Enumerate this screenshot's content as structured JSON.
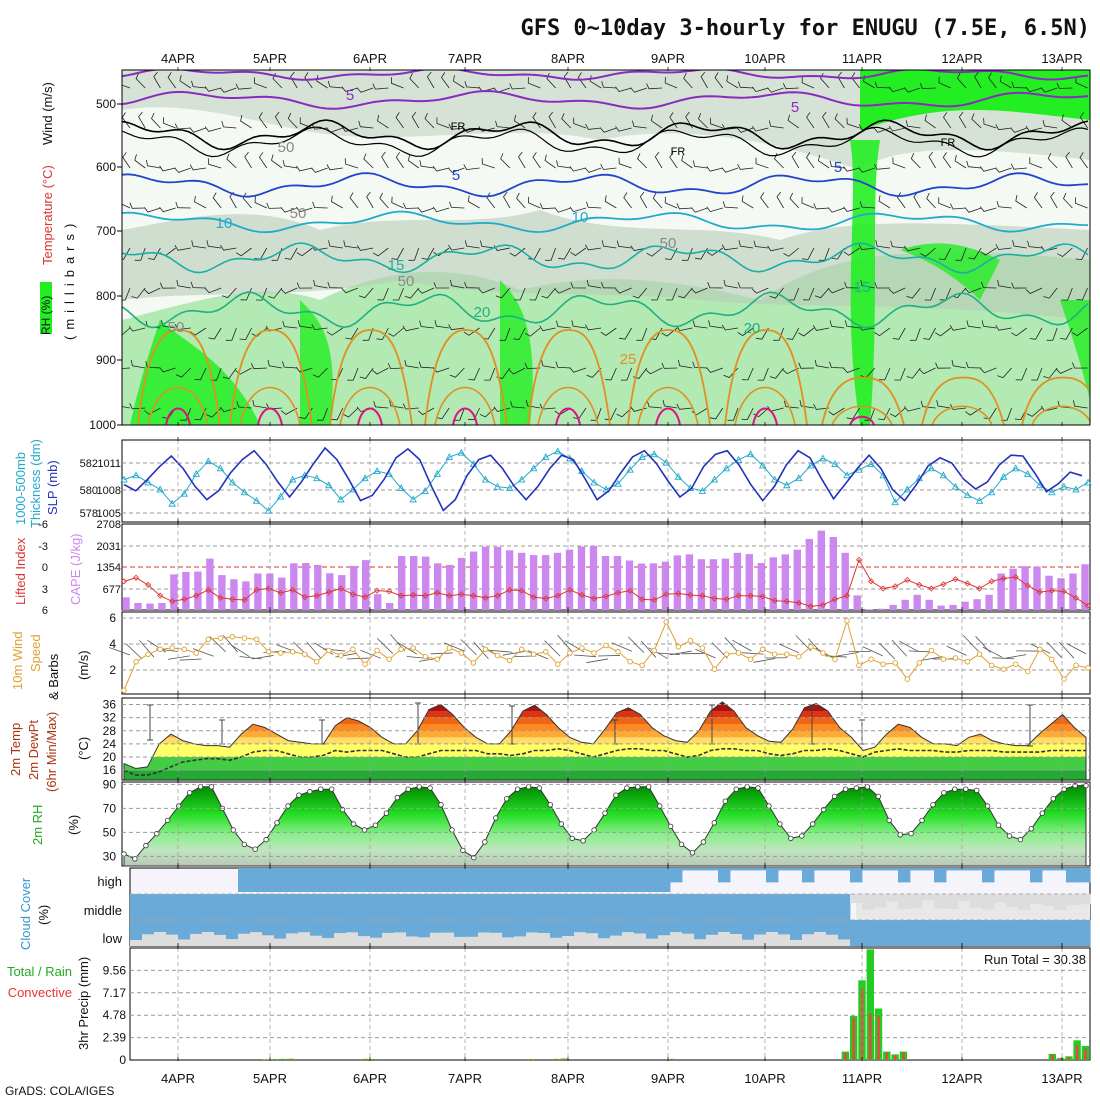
{
  "title": "GFS 0~10day 3-hourly for ENUGU (7.5E, 6.5N)",
  "footer": "GrADS: COLA/IGES",
  "dates": [
    "4APR",
    "5APR",
    "6APR",
    "7APR",
    "8APR",
    "9APR",
    "10APR",
    "11APR",
    "12APR",
    "13APR"
  ],
  "colors": {
    "rh_light": "#e6f2e6",
    "rh_mid": "#c8d8c8",
    "rh_green": "#7ddc7d",
    "rh_bright": "#22ee22",
    "purple": "#8a2bbf",
    "blue": "#2244cc",
    "cyan": "#22aacc",
    "teal": "#1ab0a0",
    "orange": "#e09020",
    "magenta": "#dd1188",
    "thickness": "#22aacc",
    "slp": "#2233bb",
    "lifted": "#dd3333",
    "cape": "#cc88ee",
    "wind": "#e0a030",
    "cloud": "#6aaad8",
    "cloud_gap": "#dddddd",
    "precip_total": "#22cc22",
    "precip_conv": "#ee4444"
  },
  "panels": {
    "upper": {
      "ylabel_wind": "Wind (m/s)",
      "ylabel_temp": "Temperature (°C)",
      "ylabel_rh": "RH (%)",
      "ylabel_p": "(millibars)",
      "pressure_ticks": [
        "500",
        "600",
        "700",
        "800",
        "900",
        "1000"
      ],
      "contour_labels": [
        "5",
        "5",
        "FR",
        "FR",
        "FR",
        "5",
        "5",
        "10",
        "10",
        "15",
        "15",
        "20",
        "20",
        "25",
        "50",
        "50",
        "50",
        "50",
        "50"
      ]
    },
    "slp": {
      "ylabel_a": "1000-500mb",
      "ylabel_b": "Thickness (dm)",
      "ylabel_c": "SLP (mb)",
      "left_ticks": [
        "582",
        "580",
        "578"
      ],
      "right_ticks": [
        "1011",
        "1008",
        "1005"
      ]
    },
    "cape": {
      "ylabel_a": "Lifted Index",
      "ylabel_b": "CAPE (J/kg)",
      "left_ticks": [
        "-6",
        "-3",
        "0",
        "3",
        "6"
      ],
      "right_ticks": [
        "2708",
        "2031",
        "1354",
        "677"
      ]
    },
    "wind": {
      "ylabel_a": "10m Wind",
      "ylabel_b": "Speed",
      "ylabel_c": "& Barbs",
      "ylabel_d": "(m/s)",
      "ticks": [
        "6",
        "4",
        "2"
      ]
    },
    "temp": {
      "ylabel_a": "2m Temp",
      "ylabel_b": "2m DewPt",
      "ylabel_c": "(6hr Min/Max)",
      "ylabel_d": "(°C)",
      "ticks": [
        "36",
        "32",
        "28",
        "24",
        "20",
        "16"
      ]
    },
    "rh": {
      "ylabel_a": "2m RH",
      "ylabel_b": "(%)",
      "ticks": [
        "90",
        "70",
        "50",
        "30"
      ]
    },
    "cloud": {
      "ylabel_a": "Cloud Cover",
      "ylabel_b": "(%)",
      "levels": [
        "high",
        "middle",
        "low"
      ]
    },
    "precip": {
      "ylabel_a": "Total / Rain",
      "ylabel_b": "Convective",
      "ylabel_c": "3hr Precip (mm)",
      "ticks": [
        "9.56",
        "7.17",
        "4.78",
        "2.39",
        "0"
      ],
      "run_total": "Run Total = 30.38"
    }
  },
  "chart_data": [
    {
      "type": "line",
      "name": "1000-500mb thickness and SLP",
      "x_unit": "3-hourly steps from 3APR 12Z",
      "series": [
        {
          "name": "SLP (mb)",
          "values": [
            1008.2,
            1007.5,
            1008.8,
            1010.2,
            1011.4,
            1010,
            1008,
            1006.5,
            1007.5,
            1009.5,
            1011,
            1012,
            1010.5,
            1008.5,
            1006.8,
            1008.5,
            1010.5,
            1012.3,
            1011,
            1008.8,
            1006.4,
            1007,
            1008.8,
            1011.2,
            1012.2,
            1011,
            1008,
            1005.3,
            1006.5,
            1009.2,
            1011,
            1011.5,
            1010,
            1008,
            1006.5,
            1008,
            1010,
            1011.5,
            1011,
            1008.8,
            1006.5,
            1007.5,
            1009.5,
            1011.3,
            1012,
            1010.6,
            1008.6,
            1006.8,
            1007.8,
            1010.2,
            1011.6,
            1012,
            1010.4,
            1008.2,
            1006.4,
            1008,
            1010.4,
            1012,
            1011.2,
            1008.8,
            1006.6,
            1008.3,
            1010,
            1011.5,
            1010,
            1007.6,
            1006.4,
            1008.2,
            1010.3,
            1011.2,
            1010.6,
            1008.8,
            1007.7,
            1008.5,
            1010.4,
            1011.5,
            1011.4,
            1009.5,
            1007.4,
            1008.3,
            1009.6,
            1009.2
          ]
        },
        {
          "name": "Thickness (dm)",
          "values": [
            580.2,
            580.5,
            580,
            579.5,
            578.5,
            579.2,
            580.6,
            581.5,
            581,
            580,
            579.3,
            578.7,
            578,
            579,
            580.2,
            580.5,
            580.3,
            579.8,
            578.8,
            579.5,
            580.3,
            580.8,
            580.6,
            579.6,
            578.8,
            579.4,
            580.6,
            581.8,
            582.1,
            581.3,
            580.2,
            579.7,
            579.6,
            580.2,
            581,
            581.8,
            582.2,
            581.7,
            580.8,
            580,
            579.5,
            579.9,
            580.9,
            581.8,
            582,
            581.4,
            580.4,
            579.6,
            579.4,
            580.2,
            581,
            581.6,
            582,
            581.2,
            580.2,
            579.8,
            580.3,
            581.2,
            581.7,
            581.3,
            580.5,
            580.9,
            581.3,
            580.5,
            578.6,
            579.5,
            580.3,
            581,
            580.5,
            579.7,
            579.1,
            578.7,
            579.3,
            580.4,
            581,
            580.6,
            579.8,
            579.3,
            579.7,
            579.5,
            580
          ]
        }
      ]
    },
    {
      "type": "bar",
      "name": "CAPE and Lifted Index",
      "series": [
        {
          "name": "CAPE (J/kg)",
          "values": [
            400,
            220,
            200,
            220,
            1120,
            1200,
            1210,
            1620,
            1100,
            970,
            900,
            1150,
            1150,
            1020,
            1470,
            1480,
            1420,
            1160,
            1100,
            1390,
            1570,
            500,
            220,
            1700,
            1700,
            1680,
            1470,
            1420,
            1640,
            1840,
            1990,
            1990,
            1880,
            1800,
            1730,
            1730,
            1800,
            1900,
            2000,
            2020,
            1700,
            1700,
            1560,
            1460,
            1470,
            1520,
            1720,
            1750,
            1600,
            1600,
            1620,
            1800,
            1760,
            1480,
            1660,
            1750,
            1900,
            2240,
            2500,
            2300,
            1800,
            460,
            20,
            40,
            160,
            320,
            480,
            320,
            140,
            160,
            260,
            340,
            480,
            1150,
            1300,
            1380,
            1360,
            1080,
            1000,
            1150,
            1440
          ]
        },
        {
          "name": "Lifted Index",
          "values": [
            -2,
            -1.5,
            -2.5,
            -4,
            -4.8,
            -4.5,
            -4,
            -3.2,
            -4.3,
            -4.5,
            -4.6,
            -3.2,
            -3,
            -3.6,
            -3.2,
            -4.2,
            -4,
            -3.5,
            -3,
            -3.8,
            -4.2,
            -3.3,
            -3.4,
            -4,
            -3.9,
            -4,
            -3.6,
            -4,
            -3.8,
            -4,
            -4.3,
            -4,
            -3.2,
            -3.3,
            -4.2,
            -4.4,
            -4,
            -3.2,
            -3.9,
            -4.4,
            -4.1,
            -3.6,
            -3.3,
            -4.5,
            -4.6,
            -3.8,
            -3.7,
            -3.9,
            -4,
            -4.4,
            -4.5,
            -4,
            -4,
            -4.1,
            -4.7,
            -4.8,
            -5,
            -5.5,
            -5.3,
            -4.5,
            -4,
            1,
            -2,
            -3,
            -2.7,
            -1.8,
            -2.5,
            -3,
            -2.4,
            -1.7,
            -2.3,
            -3,
            -2,
            -1.6,
            -1.4,
            -2.6,
            -3.5,
            -3.3,
            -3.4,
            -4.3,
            -5.4
          ]
        }
      ]
    },
    {
      "type": "line",
      "name": "10m Wind Speed",
      "series": [
        {
          "name": "Wind speed (m/s)",
          "values": [
            0.5,
            2.8,
            3.4,
            3.8,
            3.9,
            3.8,
            3.5,
            4.6,
            4.7,
            4.8,
            4.7,
            4.6,
            3.6,
            3.5,
            3.6,
            3.4,
            2.8,
            3.7,
            3.3,
            3.8,
            2.6,
            3.7,
            3.0,
            3.8,
            3.9,
            3.2,
            3.0,
            3.9,
            3.5,
            2.7,
            3.8,
            3.3,
            2.9,
            3.8,
            3.4,
            3.6,
            2.6,
            3.5,
            3.9,
            3.5,
            4.1,
            3.6,
            2.8,
            2.5,
            3.7,
            6.0,
            4.0,
            4.5,
            3.9,
            2.2,
            3.4,
            3.5,
            3.0,
            3.8,
            3.4,
            3.4,
            3.2,
            4.0,
            3.5,
            3.0,
            6.1,
            2.5,
            3.0,
            2.6,
            2.7,
            1.4,
            2.7,
            3.7,
            3.0,
            3.1,
            2.8,
            3.4,
            2.5,
            2.2,
            2.6,
            2.0,
            3.8,
            3.0,
            1.4,
            2.5,
            2.3
          ]
        }
      ]
    },
    {
      "type": "area",
      "name": "2m Temperature and Dew Point",
      "series": [
        {
          "name": "2m Temp (°C)",
          "values": [
            18,
            16.5,
            17,
            24,
            27,
            25,
            24,
            23.5,
            23.5,
            23,
            27,
            30,
            29,
            27,
            25,
            24.5,
            24,
            24,
            29.5,
            32,
            31,
            29,
            26,
            24,
            24,
            28,
            34.5,
            36,
            33,
            29,
            26,
            24,
            24,
            28,
            34,
            35.8,
            33,
            29,
            26,
            24.5,
            24,
            28.5,
            33.5,
            35,
            33,
            29,
            26.5,
            25,
            24.5,
            28,
            34,
            36.8,
            34,
            29,
            26.5,
            24.8,
            24.5,
            28.5,
            35,
            36.3,
            34,
            29,
            26,
            22,
            23,
            27,
            30,
            29,
            26,
            24,
            24,
            23.5,
            26,
            27,
            25,
            24,
            23.5,
            23.5,
            27,
            30,
            33,
            29,
            26
          ]
        },
        {
          "name": "2m DewPt (°C)",
          "values": [
            16,
            14.5,
            14.5,
            15.5,
            17,
            18.5,
            19,
            19.5,
            19.5,
            19,
            20,
            21.5,
            22,
            22,
            21,
            20,
            20,
            20.5,
            22,
            21.5,
            22,
            22,
            22,
            21,
            20,
            20,
            21,
            22,
            22,
            22,
            22,
            21,
            21,
            20.5,
            21,
            22,
            22,
            22.5,
            22,
            21,
            20,
            21,
            22,
            22.5,
            22.5,
            22,
            22,
            21,
            20,
            20.5,
            22,
            22.5,
            22.5,
            22,
            22,
            21,
            20.5,
            21,
            22,
            22,
            22.5,
            22,
            21,
            20,
            21.5,
            22,
            22.5,
            22,
            22,
            22,
            21.5,
            21.5,
            22,
            22,
            22,
            21.5,
            21.5,
            21.5,
            21.5,
            22,
            22,
            22,
            22
          ]
        }
      ]
    },
    {
      "type": "area",
      "name": "2m Relative Humidity",
      "series": [
        {
          "name": "2m RH (%)",
          "values": [
            32,
            28,
            39,
            49,
            60,
            72,
            83,
            88,
            88,
            70,
            52,
            40,
            36,
            44,
            58,
            72,
            81,
            84,
            86,
            86,
            69,
            57,
            52,
            56,
            66,
            79,
            86,
            88,
            87,
            73,
            52,
            35,
            29,
            42,
            62,
            78,
            86,
            88,
            87,
            73,
            57,
            45,
            43,
            52,
            66,
            81,
            87,
            88,
            88,
            72,
            55,
            40,
            33,
            42,
            58,
            76,
            86,
            88,
            87,
            72,
            57,
            45,
            47,
            57,
            69,
            80,
            86,
            87,
            88,
            80,
            60,
            48,
            49,
            60,
            73,
            83,
            86,
            86,
            85,
            72,
            56,
            47,
            44,
            53,
            66,
            78,
            86,
            89,
            89
          ]
        }
      ]
    },
    {
      "type": "bar",
      "name": "3hr Precip",
      "ylim": [
        0,
        11.95
      ],
      "series": [
        {
          "name": "Total (mm)",
          "values": [
            0,
            0,
            0,
            0,
            0,
            0,
            0,
            0,
            0,
            0,
            0,
            0,
            0,
            0,
            0,
            0,
            0.08,
            0.1,
            0.12,
            0.13,
            0,
            0,
            0,
            0,
            0,
            0,
            0,
            0,
            0.12,
            0.1,
            0,
            0,
            0,
            0,
            0,
            0,
            0,
            0,
            0,
            0,
            0,
            0,
            0,
            0,
            0,
            0,
            0,
            0,
            0.1,
            0,
            0,
            0.12,
            0.15,
            0,
            0,
            0,
            0,
            0,
            0,
            0,
            0,
            0,
            0,
            0,
            0,
            0.12,
            0,
            0,
            0,
            0,
            0,
            0,
            0,
            0,
            0,
            0,
            0,
            0,
            0,
            0,
            0,
            0,
            0,
            0,
            0,
            0,
            0.9,
            4.7,
            8.5,
            11.8,
            5.5,
            0.9,
            0.6,
            0.9,
            0,
            0,
            0,
            0,
            0,
            0,
            0,
            0,
            0,
            0,
            0,
            0,
            0,
            0,
            0,
            0,
            0,
            0.65,
            0.2,
            0.4,
            2.1,
            1.5
          ]
        },
        {
          "name": "Convective (mm)",
          "values": [
            0,
            0,
            0,
            0,
            0,
            0,
            0,
            0,
            0,
            0,
            0,
            0,
            0,
            0,
            0,
            0,
            0.08,
            0.1,
            0.12,
            0.13,
            0,
            0,
            0,
            0,
            0,
            0,
            0,
            0,
            0.12,
            0.1,
            0,
            0,
            0,
            0,
            0,
            0,
            0,
            0,
            0,
            0,
            0,
            0,
            0,
            0,
            0,
            0,
            0,
            0,
            0.1,
            0,
            0,
            0.12,
            0.15,
            0,
            0,
            0,
            0,
            0,
            0,
            0,
            0,
            0,
            0,
            0,
            0,
            0.12,
            0,
            0,
            0,
            0,
            0,
            0,
            0,
            0,
            0,
            0,
            0,
            0,
            0,
            0,
            0,
            0,
            0,
            0,
            0,
            0,
            0.8,
            4.5,
            7.6,
            5.0,
            4.7,
            0.8,
            0.5,
            0.8,
            0,
            0,
            0,
            0,
            0,
            0,
            0,
            0,
            0,
            0,
            0,
            0,
            0,
            0,
            0,
            0,
            0,
            0.6,
            0.2,
            0.3,
            1.6,
            1.2
          ]
        }
      ]
    }
  ]
}
